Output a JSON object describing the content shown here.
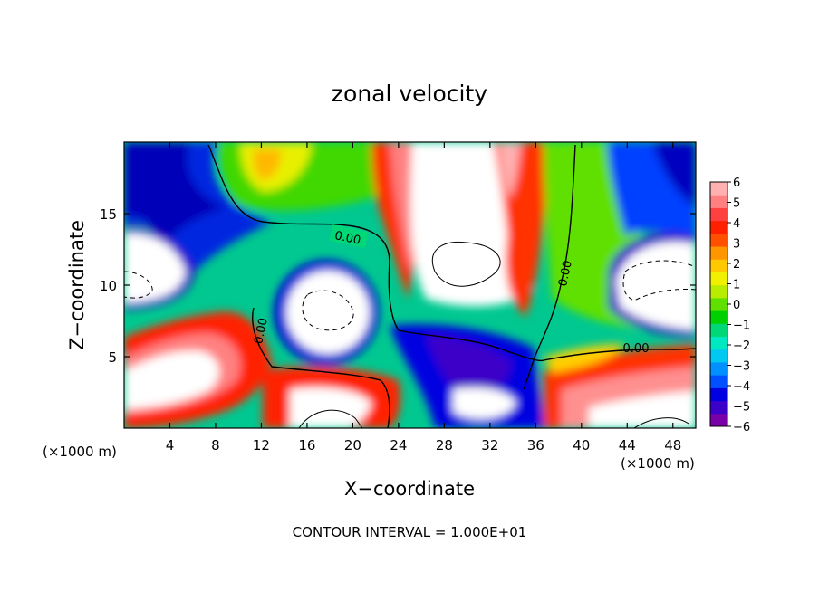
{
  "chart_data": {
    "type": "heatmap",
    "title": "zonal velocity",
    "xlabel": "X−coordinate",
    "ylabel": "Z−coordinate",
    "x_unit_left": "(×1000 m)",
    "x_unit_right": "(×1000 m)",
    "xlim": [
      0,
      50
    ],
    "ylim": [
      0,
      20
    ],
    "x_ticks": [
      4,
      8,
      12,
      16,
      20,
      24,
      28,
      32,
      36,
      40,
      44,
      48
    ],
    "x_tick_labels": [
      "4",
      "8",
      "12",
      "16",
      "20",
      "24",
      "28",
      "32",
      "36",
      "40",
      "44",
      "48"
    ],
    "y_ticks": [
      5,
      10,
      15
    ],
    "y_tick_labels": [
      "5",
      "10",
      "15"
    ],
    "colorbar": {
      "min": -6,
      "max": 6,
      "ticks": [
        "6",
        "5",
        "4",
        "3",
        "2",
        "1",
        "0",
        "−1",
        "−2",
        "−3",
        "−4",
        "−5",
        "−6"
      ],
      "colors": [
        "#7a00a8",
        "#3c00c8",
        "#0000e0",
        "#0050ff",
        "#0090ff",
        "#00c8f0",
        "#00e8c0",
        "#00d878",
        "#00d000",
        "#60e000",
        "#b8ec00",
        "#f0f000",
        "#ffc800",
        "#ff9600",
        "#ff5000",
        "#ff2000",
        "#ff4040",
        "#ff8080",
        "#ffb0b0"
      ]
    },
    "contour_labels": [
      "0.00",
      "0.00",
      "0.00",
      "0.00"
    ],
    "contour_interval_text": "CONTOUR INTERVAL = 1.000E+01",
    "grid": false,
    "legend": "colorbar right"
  }
}
